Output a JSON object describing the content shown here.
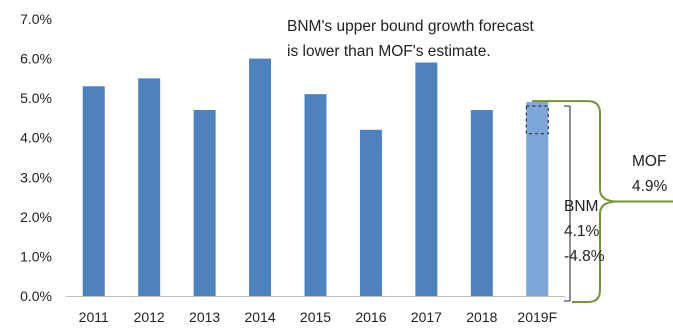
{
  "chart_data": {
    "type": "bar",
    "categories": [
      "2011",
      "2012",
      "2013",
      "2014",
      "2015",
      "2016",
      "2017",
      "2018",
      "2019F"
    ],
    "values": [
      5.3,
      5.5,
      4.7,
      6.0,
      5.1,
      4.2,
      5.9,
      4.7,
      4.9
    ],
    "highlight_index": 8,
    "ylim": [
      0,
      7
    ],
    "yticks": [
      "0.0%",
      "1.0%",
      "2.0%",
      "3.0%",
      "4.0%",
      "5.0%",
      "6.0%",
      "7.0%"
    ],
    "title": "",
    "xlabel": "",
    "ylabel": "",
    "grid": false,
    "bnm_range": [
      4.1,
      4.8
    ],
    "mof_estimate": 4.9,
    "colors": {
      "bar": "#4f81bd",
      "highlight_bar": "#7ea6d6",
      "brace": "#76923c",
      "axis": "#bdbdbd"
    },
    "annotations": {
      "headline_line1": "BNM's upper bound growth forecast",
      "headline_line2": "is lower than MOF's estimate.",
      "mof_line1": "MOF",
      "mof_line2": "4.9%",
      "bnm_line1": "BNM",
      "bnm_line2": "4.1%",
      "bnm_line3": "-4.8%"
    }
  }
}
